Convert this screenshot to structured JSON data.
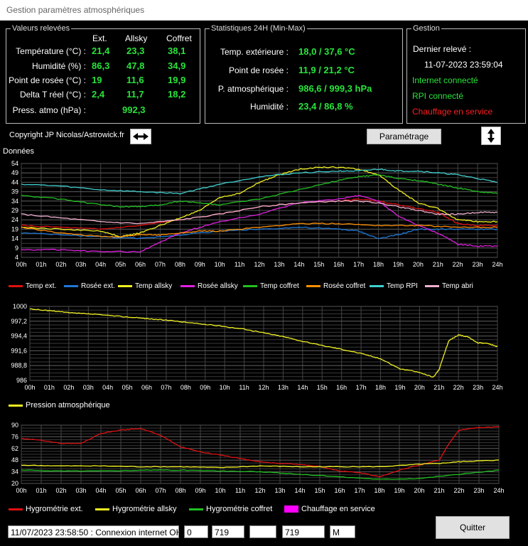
{
  "window": {
    "title": "Gestion paramètres atmosphériques"
  },
  "releves": {
    "title": "Valeurs relevées",
    "headers": [
      "Ext.",
      "Allsky",
      "Coffret"
    ],
    "rows": [
      {
        "label": "Température (°C) :",
        "values": [
          "21,4",
          "23,3",
          "38,1"
        ]
      },
      {
        "label": "Humidité (%) :",
        "values": [
          "86,3",
          "47,8",
          "34,9"
        ]
      },
      {
        "label": "Point de rosée (°C) :",
        "values": [
          "19",
          "11,6",
          "19,9"
        ]
      },
      {
        "label": "Delta T réel  (°C) :",
        "values": [
          "2,4",
          "11,7",
          "18,2"
        ]
      }
    ],
    "press_label": "Press. atmo (hPa) :",
    "press_value": "992,3"
  },
  "stats": {
    "title": "Statistiques 24H (Min-Max)",
    "rows": [
      {
        "label": "Temp. extérieure :",
        "value": "18,0 / 37,6 °C"
      },
      {
        "label": "Point de rosée :",
        "value": "11,9 / 21,2 °C"
      },
      {
        "label": "P. atmosphérique :",
        "value": "986,6 / 999,3 hPa"
      },
      {
        "label": "Humidité :",
        "value": "23,4 / 86,8 %"
      }
    ]
  },
  "gestion": {
    "title": "Gestion",
    "dernier_label": "Dernier relevé :",
    "dernier_value": "11-07-2023 23:59:04",
    "internet": "Internet connecté",
    "rpi": "RPI connecté",
    "chauffage": "Chauffage en service",
    "colors": {
      "ok": "#29e33b",
      "alert": "#ff1f1f"
    }
  },
  "toolbar": {
    "copyright": "Copyright JP Nicolas/Astrowick.fr",
    "param_label": "Paramétrage",
    "donnees_label": "Données"
  },
  "xaxis": [
    "00h",
    "01h",
    "02h",
    "03h",
    "04h",
    "05h",
    "06h",
    "07h",
    "08h",
    "09h",
    "10h",
    "11h",
    "12h",
    "13h",
    "14h",
    "15h",
    "16h",
    "17h",
    "18h",
    "19h",
    "20h",
    "21h",
    "22h",
    "23h",
    "24h"
  ],
  "chart_data": [
    {
      "type": "line",
      "yticks": [
        4,
        9,
        14,
        19,
        24,
        29,
        34,
        39,
        44,
        49,
        54
      ],
      "ylim": [
        4,
        54
      ],
      "xlim": [
        0,
        24
      ],
      "series": [
        {
          "name": "Temp ext.",
          "color": "#e01010",
          "x": [
            0,
            2,
            4,
            6,
            8,
            10,
            12,
            14,
            16,
            17,
            18,
            19,
            20,
            21,
            22,
            23,
            24
          ],
          "y": [
            21,
            20,
            19,
            21,
            24,
            27,
            31,
            33,
            34,
            35,
            34,
            32,
            30,
            28,
            22,
            21,
            21
          ]
        },
        {
          "name": "Rosée ext.",
          "color": "#1e78d7",
          "x": [
            0,
            2,
            4,
            6,
            8,
            10,
            12,
            14,
            16,
            17,
            18,
            19,
            20,
            21,
            22,
            23,
            24
          ],
          "y": [
            17,
            16,
            15,
            14,
            16,
            18,
            19,
            20,
            19,
            18,
            14,
            16,
            19,
            19,
            19,
            19,
            19
          ]
        },
        {
          "name": "Temp allsky",
          "color": "#f0f020",
          "x": [
            0,
            2,
            4,
            5,
            6,
            7,
            8,
            9,
            10,
            11,
            12,
            13,
            14,
            15,
            16,
            17,
            18,
            19,
            20,
            21,
            22,
            23,
            24
          ],
          "y": [
            20,
            19,
            18,
            15,
            17,
            21,
            25,
            29,
            36,
            38,
            44,
            48,
            51,
            52,
            52,
            51,
            48,
            40,
            33,
            30,
            24,
            23,
            23
          ]
        },
        {
          "name": "Rosée allsky",
          "color": "#e020e0",
          "x": [
            0,
            2,
            4,
            6,
            7,
            8,
            9,
            10,
            12,
            14,
            16,
            17,
            18,
            19,
            20,
            21,
            22,
            23,
            24
          ],
          "y": [
            8,
            8,
            7,
            7,
            12,
            17,
            20,
            23,
            27,
            33,
            35,
            37,
            34,
            26,
            21,
            17,
            11,
            10,
            10
          ]
        },
        {
          "name": "Temp coffret",
          "color": "#20c020",
          "x": [
            0,
            2,
            4,
            5,
            6,
            7,
            8,
            9,
            10,
            12,
            14,
            16,
            17,
            18,
            19,
            20,
            21,
            22,
            23,
            24
          ],
          "y": [
            37,
            35,
            32,
            31,
            31,
            32,
            34,
            33,
            32,
            35,
            40,
            45,
            47,
            48,
            46,
            45,
            43,
            41,
            39,
            38
          ]
        },
        {
          "name": "Rosée coffret",
          "color": "#ff9000",
          "x": [
            0,
            2,
            4,
            5,
            6,
            7,
            8,
            9,
            10,
            12,
            14,
            16,
            18,
            20,
            22,
            24
          ],
          "y": [
            20,
            17,
            15,
            15,
            16,
            16,
            17,
            18,
            18,
            20,
            22,
            22,
            21,
            21,
            20,
            20
          ]
        },
        {
          "name": "Temp RPI",
          "color": "#40d0d0",
          "x": [
            0,
            2,
            4,
            6,
            8,
            10,
            12,
            14,
            16,
            17,
            18,
            19,
            20,
            21,
            22,
            23,
            24
          ],
          "y": [
            43,
            42,
            40,
            39,
            38,
            43,
            47,
            49,
            50,
            50,
            51,
            50,
            50,
            49,
            48,
            46,
            44
          ]
        },
        {
          "name": "Temp abri",
          "color": "#f0b0d0",
          "x": [
            0,
            2,
            4,
            6,
            8,
            10,
            12,
            14,
            16,
            17,
            18,
            19,
            20,
            21,
            22,
            23,
            24
          ],
          "y": [
            27,
            25,
            23,
            22,
            24,
            27,
            31,
            33,
            34,
            34,
            33,
            31,
            29,
            27,
            27,
            28,
            28
          ]
        }
      ]
    },
    {
      "type": "line",
      "yticks": [
        "986",
        "988,8",
        "991,6",
        "994,4",
        "997,2",
        "1000"
      ],
      "ytick_values": [
        986,
        988.8,
        991.6,
        994.4,
        997.2,
        1000
      ],
      "ylim": [
        986,
        1000
      ],
      "xlim": [
        0,
        24
      ],
      "series": [
        {
          "name": "Pression atmosphérique",
          "color": "#f0f020",
          "x": [
            0,
            1,
            2,
            3,
            4,
            5,
            6,
            7,
            8,
            9,
            10,
            11,
            12,
            13,
            14,
            15,
            16,
            17,
            18,
            19,
            20,
            20.7,
            21,
            21.5,
            22,
            22.5,
            23,
            23.5,
            24
          ],
          "y": [
            999.5,
            999.2,
            998.8,
            998.6,
            998.3,
            998,
            997.7,
            997.4,
            997,
            996.6,
            996.2,
            995.7,
            995,
            994.3,
            993.4,
            992.6,
            991.9,
            991.1,
            990.1,
            988.2,
            987.5,
            986.6,
            988,
            993.5,
            994.6,
            994.2,
            993.1,
            993,
            992.4
          ]
        }
      ]
    },
    {
      "type": "line",
      "yticks": [
        20,
        34,
        48,
        62,
        76,
        90
      ],
      "ylim": [
        20,
        90
      ],
      "xlim": [
        0,
        24
      ],
      "series": [
        {
          "name": "Hygrométrie ext.",
          "color": "#e01010",
          "x": [
            0,
            1,
            2,
            3,
            4,
            5,
            6,
            7,
            8,
            9,
            10,
            11,
            12,
            13,
            14,
            15,
            16,
            17,
            18,
            19,
            20,
            21,
            21.5,
            22,
            23,
            24
          ],
          "y": [
            74,
            72,
            68,
            68,
            80,
            84,
            86,
            78,
            64,
            58,
            54,
            50,
            46,
            44,
            43,
            40,
            35,
            33,
            28,
            36,
            42,
            48,
            68,
            84,
            87,
            88
          ]
        },
        {
          "name": "Hygrométrie allsky",
          "color": "#f0f020",
          "x": [
            0,
            2,
            4,
            6,
            8,
            10,
            12,
            14,
            16,
            18,
            20,
            21,
            22,
            23,
            24
          ],
          "y": [
            42,
            41,
            41,
            40,
            40,
            39,
            41,
            40,
            40,
            40,
            43,
            44,
            46,
            47,
            48
          ]
        },
        {
          "name": "Hygrométrie coffret",
          "color": "#20c020",
          "x": [
            0,
            2,
            4,
            6,
            8,
            10,
            12,
            14,
            16,
            18,
            20,
            22,
            24
          ],
          "y": [
            36,
            35,
            35,
            36,
            36,
            35,
            34,
            31,
            28,
            25,
            26,
            31,
            36
          ]
        },
        {
          "name": "Chauffage en service",
          "color": "#ff00ff",
          "x": [],
          "y": []
        }
      ]
    }
  ],
  "status": {
    "message": "11/07/2023 23:58:50 : Connexion internet OK",
    "f1": "0",
    "f2": "719",
    "f3": "",
    "f4": "719",
    "f5": "M",
    "quit_label": "Quitter"
  }
}
